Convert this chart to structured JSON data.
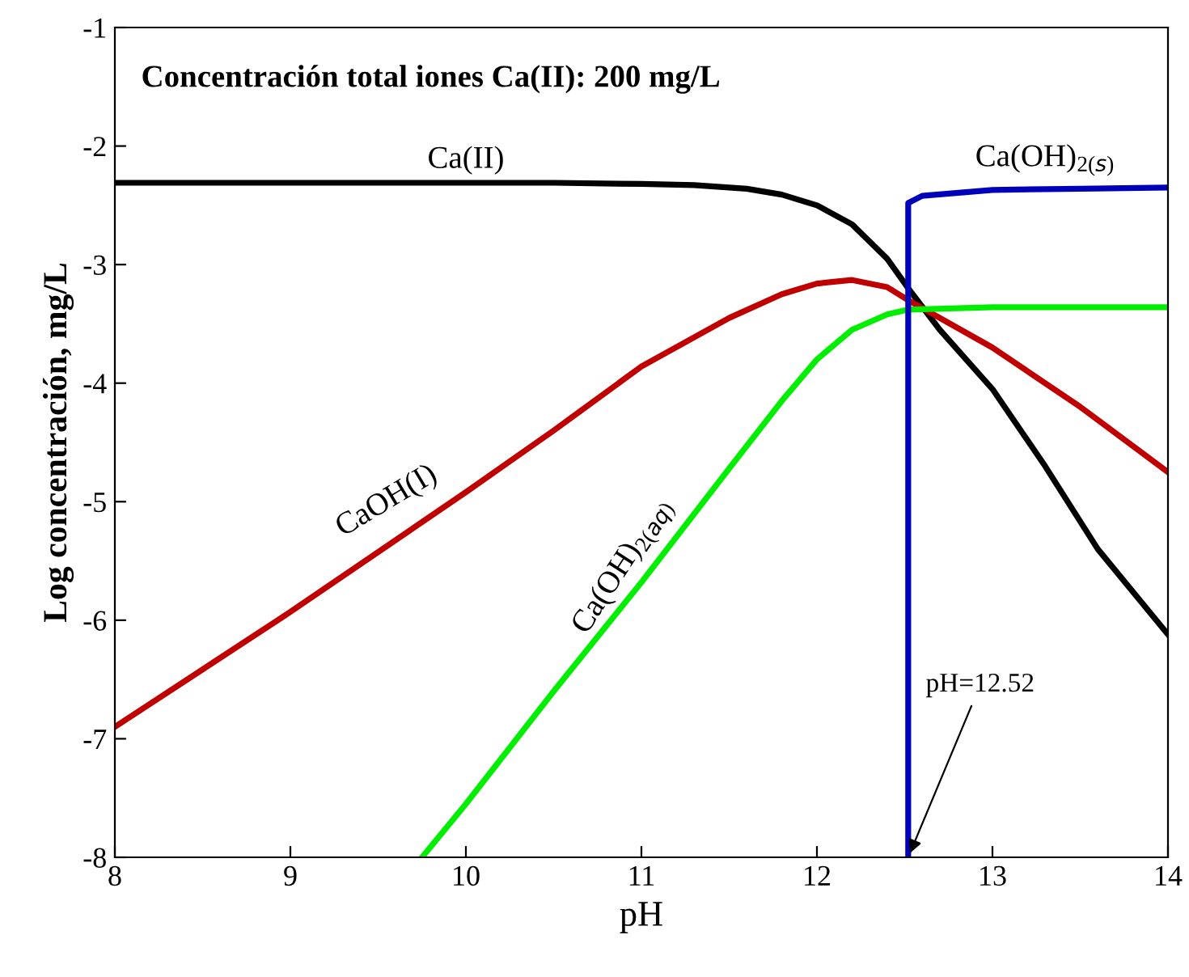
{
  "chart_data": {
    "type": "line",
    "xlabel": "pH",
    "ylabel": "Log concentración, mg/L",
    "x": [
      8,
      9,
      10,
      10.5,
      11,
      11.3,
      11.6,
      11.8,
      12,
      12.2,
      12.4,
      12.52,
      12.7,
      13,
      13.3,
      13.6,
      14
    ],
    "series": [
      {
        "name": "Ca(II)",
        "color": "#000000",
        "values": [
          -2.31,
          -2.31,
          -2.31,
          -2.31,
          -2.32,
          -2.33,
          -2.36,
          -2.41,
          -2.5,
          -2.66,
          -2.95,
          -3.2,
          -3.55,
          -4.05,
          -4.7,
          -5.4,
          -6.12
        ]
      },
      {
        "name": "CaOH(I)",
        "color": "#c00000",
        "x": [
          8,
          9,
          10,
          10.5,
          11,
          11.5,
          11.8,
          12,
          12.2,
          12.4,
          12.52,
          13,
          13.5,
          14
        ],
        "values": [
          -6.9,
          -5.93,
          -4.92,
          -4.4,
          -3.86,
          -3.45,
          -3.25,
          -3.16,
          -3.13,
          -3.19,
          -3.3,
          -3.7,
          -4.2,
          -4.75
        ]
      },
      {
        "name": "Ca(OH)$_{2(aq)}$",
        "color": "#00ee00",
        "x": [
          9.75,
          10,
          10.5,
          11,
          11.5,
          11.8,
          12,
          12.2,
          12.4,
          12.52,
          13,
          14
        ],
        "values": [
          -8,
          -7.55,
          -6.6,
          -5.68,
          -4.72,
          -4.15,
          -3.8,
          -3.55,
          -3.42,
          -3.38,
          -3.36,
          -3.36
        ]
      },
      {
        "name": "Ca(OH)$_{2(s)}$",
        "color": "#0000bb",
        "x": [
          12.52,
          12.52,
          12.6,
          13,
          13.5,
          14
        ],
        "values": [
          -8,
          -2.48,
          -2.42,
          -2.37,
          -2.36,
          -2.35
        ]
      }
    ],
    "xlim": [
      8,
      14
    ],
    "ylim": [
      -8,
      -1
    ],
    "xticks": [
      8,
      9,
      10,
      11,
      12,
      13,
      14
    ],
    "yticks": [
      -8,
      -7,
      -6,
      -5,
      -4,
      -3,
      -2,
      -1
    ],
    "grid": false,
    "legend": false,
    "marker": "none",
    "line_style": "solid",
    "annotations": [
      "Concentración total iones Ca(II): 200 mg/L",
      {
        "text": "pH=12.52",
        "x": 12.52,
        "y": -8
      }
    ]
  }
}
